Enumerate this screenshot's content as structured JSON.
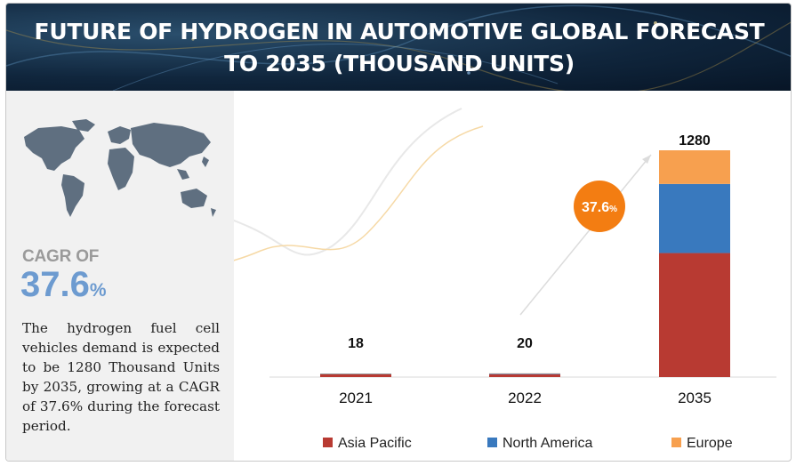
{
  "title": "FUTURE OF HYDROGEN IN AUTOMOTIVE GLOBAL FORECAST TO 2035 (THOUSAND UNITS)",
  "colors": {
    "asia_pacific": "#b83a32",
    "north_america": "#3979be",
    "europe": "#f7a04f",
    "cagr_bubble": "#f37d12",
    "cagr_text": "#6d9bd0",
    "header_bg": "#10263d"
  },
  "left_panel": {
    "icon": "world-map-icon",
    "cagr_label": "CAGR OF",
    "cagr_value": "37.6",
    "cagr_unit": "%",
    "summary": "The hydrogen fuel cell vehicles demand is expected to be 1280 Thousand Units by 2035, growing at a CAGR of 37.6% during the forecast period."
  },
  "cagr_bubble": {
    "value": "37.6",
    "unit": "%"
  },
  "chart_data": {
    "type": "bar",
    "stacked": true,
    "categories": [
      "2021",
      "2022",
      "2035"
    ],
    "totals": [
      "18",
      "20",
      "1280"
    ],
    "series": [
      {
        "name": "Asia Pacific",
        "color": "#b83a32",
        "values": [
          13,
          14,
          700
        ]
      },
      {
        "name": "North America",
        "color": "#3979be",
        "values": [
          3,
          4,
          390
        ]
      },
      {
        "name": "Europe",
        "color": "#f7a04f",
        "values": [
          2,
          2,
          190
        ]
      }
    ],
    "ylim": [
      0,
      1280
    ],
    "grid": false,
    "legend_position": "bottom",
    "annotation": "37.6%"
  }
}
